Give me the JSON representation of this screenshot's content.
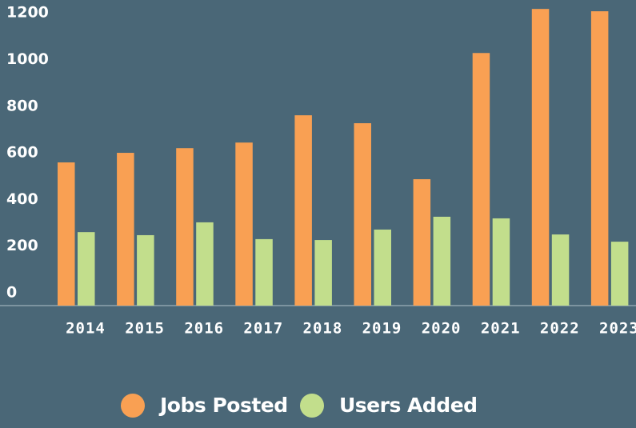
{
  "chart_data": {
    "type": "bar",
    "categories": [
      "2014",
      "2015",
      "2016",
      "2017",
      "2018",
      "2019",
      "2020",
      "2021",
      "2022",
      "2023"
    ],
    "series": [
      {
        "name": "Jobs Posted",
        "color": "#f9a053",
        "values": [
          614,
          655,
          675,
          699,
          816,
          782,
          542,
          1083,
          1272,
          1262
        ]
      },
      {
        "name": "Users Added",
        "color": "#c2de8c",
        "values": [
          315,
          302,
          357,
          285,
          281,
          326,
          381,
          374,
          305,
          274
        ]
      }
    ],
    "ylim": [
      0,
      1300
    ],
    "yticks": [
      0,
      200,
      400,
      600,
      800,
      1000,
      1200
    ],
    "grid": false,
    "legend": "bottom"
  }
}
